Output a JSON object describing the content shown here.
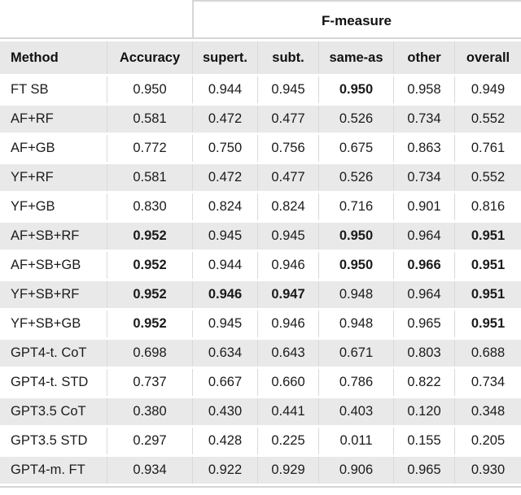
{
  "chart_data": {
    "type": "table",
    "group_header": {
      "label": "F-measure",
      "spans_columns": [
        "supert.",
        "subt.",
        "same-as",
        "other",
        "overall"
      ]
    },
    "columns": [
      "Method",
      "Accuracy",
      "supert.",
      "subt.",
      "same-as",
      "other",
      "overall"
    ],
    "rows": [
      {
        "method": "FT SB",
        "values": [
          "0.950",
          "0.944",
          "0.945",
          "0.950",
          "0.958",
          "0.949"
        ],
        "bold": [
          false,
          false,
          false,
          true,
          false,
          false
        ]
      },
      {
        "method": "AF+RF",
        "values": [
          "0.581",
          "0.472",
          "0.477",
          "0.526",
          "0.734",
          "0.552"
        ],
        "bold": [
          false,
          false,
          false,
          false,
          false,
          false
        ]
      },
      {
        "method": "AF+GB",
        "values": [
          "0.772",
          "0.750",
          "0.756",
          "0.675",
          "0.863",
          "0.761"
        ],
        "bold": [
          false,
          false,
          false,
          false,
          false,
          false
        ]
      },
      {
        "method": "YF+RF",
        "values": [
          "0.581",
          "0.472",
          "0.477",
          "0.526",
          "0.734",
          "0.552"
        ],
        "bold": [
          false,
          false,
          false,
          false,
          false,
          false
        ]
      },
      {
        "method": "YF+GB",
        "values": [
          "0.830",
          "0.824",
          "0.824",
          "0.716",
          "0.901",
          "0.816"
        ],
        "bold": [
          false,
          false,
          false,
          false,
          false,
          false
        ]
      },
      {
        "method": "AF+SB+RF",
        "values": [
          "0.952",
          "0.945",
          "0.945",
          "0.950",
          "0.964",
          "0.951"
        ],
        "bold": [
          true,
          false,
          false,
          true,
          false,
          true
        ]
      },
      {
        "method": "AF+SB+GB",
        "values": [
          "0.952",
          "0.944",
          "0.946",
          "0.950",
          "0.966",
          "0.951"
        ],
        "bold": [
          true,
          false,
          false,
          true,
          true,
          true
        ]
      },
      {
        "method": "YF+SB+RF",
        "values": [
          "0.952",
          "0.946",
          "0.947",
          "0.948",
          "0.964",
          "0.951"
        ],
        "bold": [
          true,
          true,
          true,
          false,
          false,
          true
        ]
      },
      {
        "method": "YF+SB+GB",
        "values": [
          "0.952",
          "0.945",
          "0.946",
          "0.948",
          "0.965",
          "0.951"
        ],
        "bold": [
          true,
          false,
          false,
          false,
          false,
          true
        ]
      },
      {
        "method": "GPT4-t. CoT",
        "values": [
          "0.698",
          "0.634",
          "0.643",
          "0.671",
          "0.803",
          "0.688"
        ],
        "bold": [
          false,
          false,
          false,
          false,
          false,
          false
        ]
      },
      {
        "method": "GPT4-t. STD",
        "values": [
          "0.737",
          "0.667",
          "0.660",
          "0.786",
          "0.822",
          "0.734"
        ],
        "bold": [
          false,
          false,
          false,
          false,
          false,
          false
        ]
      },
      {
        "method": "GPT3.5 CoT",
        "values": [
          "0.380",
          "0.430",
          "0.441",
          "0.403",
          "0.120",
          "0.348"
        ],
        "bold": [
          false,
          false,
          false,
          false,
          false,
          false
        ]
      },
      {
        "method": "GPT3.5 STD",
        "values": [
          "0.297",
          "0.428",
          "0.225",
          "0.011",
          "0.155",
          "0.205"
        ],
        "bold": [
          false,
          false,
          false,
          false,
          false,
          false
        ]
      },
      {
        "method": "GPT4-m. FT",
        "values": [
          "0.934",
          "0.922",
          "0.929",
          "0.906",
          "0.965",
          "0.930"
        ],
        "bold": [
          false,
          false,
          false,
          false,
          false,
          false
        ]
      }
    ]
  },
  "colors": {
    "stripe_bg": "#e9e9e9",
    "header_bg": "#e8e8e8",
    "rule": "#d6d6d6",
    "divider": "#d9d9d9",
    "text": "#1b1b1b"
  }
}
